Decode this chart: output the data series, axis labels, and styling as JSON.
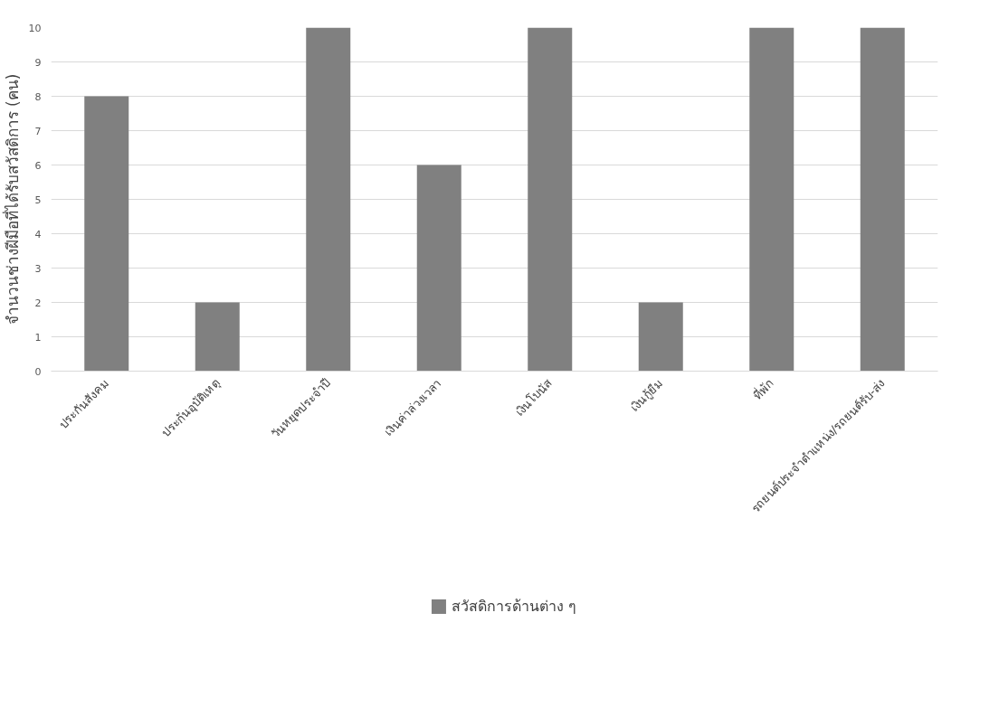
{
  "chart_data": {
    "type": "bar",
    "ylabel": "จำนวนช่างฝีมือที่ได้รับสวัสดิการ (คน)",
    "categories": [
      "ประกันสังคม",
      "ประกันอุบัติเหตุ",
      "วันหยุดประจำปี",
      "เงินค่าล่วงเวลา",
      "เงินโบนัส",
      "เงินกู้ยืม",
      "ที่พัก",
      "รถยนต์ประจำตำแหน่ง/รถยนต์รับ-ส่ง"
    ],
    "series": [
      {
        "name": "สวัสดิการด้านต่าง ๆ",
        "color": "#808080",
        "values": [
          8,
          2,
          10,
          6,
          10,
          2,
          10,
          10
        ]
      }
    ],
    "ylim": [
      0,
      10
    ],
    "yticks": [
      0,
      1,
      2,
      3,
      4,
      5,
      6,
      7,
      8,
      9,
      10
    ],
    "grid": "y",
    "legend": "bottom"
  }
}
